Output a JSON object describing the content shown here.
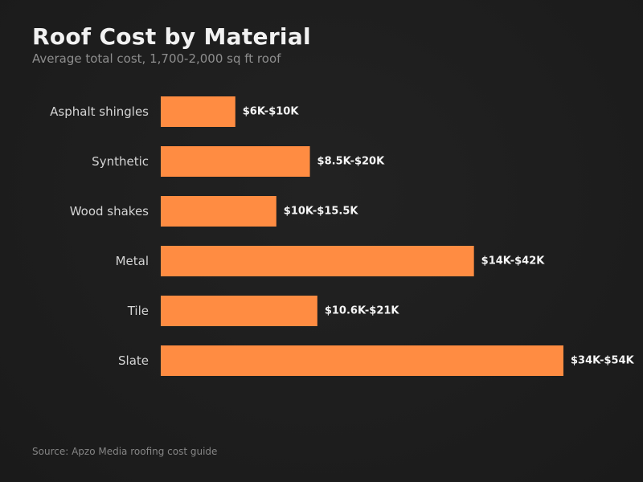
{
  "title": "Roof Cost by Material",
  "subtitle": "Average total cost, 1,700-2,000 sq ft roof",
  "source": "Source: Apzo Media roofing cost guide",
  "colors": {
    "background": "#1c1c1c",
    "bar": "#ff8c42"
  },
  "chart_data": {
    "type": "bar",
    "orientation": "horizontal",
    "title": "Roof Cost by Material",
    "subtitle": "Average total cost, 1,700-2,000 sq ft roof",
    "xlabel": "",
    "ylabel": "",
    "grid": false,
    "unit": "USD",
    "categories": [
      "Asphalt shingles",
      "Synthetic",
      "Wood shakes",
      "Metal",
      "Tile",
      "Slate"
    ],
    "values": [
      10000,
      20000,
      15500,
      42000,
      21000,
      54000
    ],
    "ranges": [
      [
        6000,
        10000
      ],
      [
        8500,
        20000
      ],
      [
        10000,
        15500
      ],
      [
        14000,
        42000
      ],
      [
        10600,
        21000
      ],
      [
        34000,
        54000
      ]
    ],
    "labels": [
      "$6K-$10K",
      "$8.5K-$20K",
      "$10K-$15.5K",
      "$14K-$42K",
      "$10.6K-$21K",
      "$34K-$54K"
    ],
    "xlim": [
      0,
      54000
    ]
  }
}
